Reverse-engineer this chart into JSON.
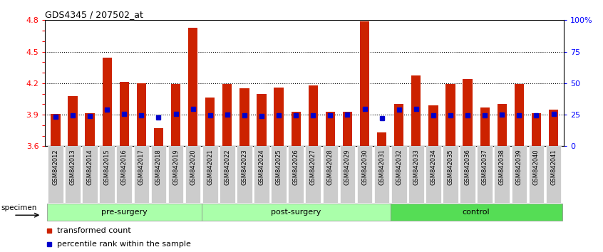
{
  "title": "GDS4345 / 207502_at",
  "categories": [
    "GSM842012",
    "GSM842013",
    "GSM842014",
    "GSM842015",
    "GSM842016",
    "GSM842017",
    "GSM842018",
    "GSM842019",
    "GSM842020",
    "GSM842021",
    "GSM842022",
    "GSM842023",
    "GSM842024",
    "GSM842025",
    "GSM842026",
    "GSM842027",
    "GSM842028",
    "GSM842029",
    "GSM842030",
    "GSM842031",
    "GSM842032",
    "GSM842033",
    "GSM842034",
    "GSM842035",
    "GSM842036",
    "GSM842037",
    "GSM842038",
    "GSM842039",
    "GSM842040",
    "GSM842041"
  ],
  "bar_values": [
    3.905,
    4.08,
    3.915,
    4.44,
    4.21,
    4.2,
    3.775,
    4.195,
    4.73,
    4.06,
    4.195,
    4.15,
    4.1,
    4.16,
    3.93,
    4.18,
    3.93,
    3.93,
    4.79,
    3.73,
    4.0,
    4.27,
    3.99,
    4.19,
    4.24,
    3.97,
    4.0,
    4.19,
    3.915,
    3.95
  ],
  "blue_values": [
    3.88,
    3.895,
    3.885,
    3.945,
    3.905,
    3.895,
    3.875,
    3.91,
    3.955,
    3.895,
    3.9,
    3.895,
    3.885,
    3.895,
    3.895,
    3.895,
    3.895,
    3.9,
    3.955,
    3.865,
    3.95,
    3.955,
    3.895,
    3.895,
    3.895,
    3.895,
    3.9,
    3.895,
    3.895,
    3.905
  ],
  "ylim": [
    3.6,
    4.8
  ],
  "yticks": [
    3.6,
    3.7,
    3.8,
    3.9,
    4.0,
    4.1,
    4.2,
    4.3,
    4.4,
    4.5,
    4.6,
    4.7,
    4.8
  ],
  "ytick_labels": [
    "3.6",
    "",
    "",
    "3.9",
    "",
    "",
    "4.2",
    "",
    "",
    "4.5",
    "",
    "",
    "4.8"
  ],
  "right_ytick_pcts": [
    0,
    25,
    50,
    75,
    100
  ],
  "right_ylabels": [
    "0",
    "25",
    "50",
    "75",
    "100%"
  ],
  "dotted_lines": [
    3.9,
    4.2,
    4.5
  ],
  "bar_color": "#CC2200",
  "blue_color": "#0000CC",
  "bar_width": 0.55,
  "group_ranges": [
    [
      0,
      8
    ],
    [
      9,
      19
    ],
    [
      20,
      29
    ]
  ],
  "group_labels": [
    "pre-surgery",
    "post-surgery",
    "control"
  ],
  "group_colors": [
    "#aaffaa",
    "#aaffaa",
    "#55dd55"
  ],
  "legend_labels": [
    "transformed count",
    "percentile rank within the sample"
  ],
  "legend_colors": [
    "#CC2200",
    "#0000CC"
  ]
}
